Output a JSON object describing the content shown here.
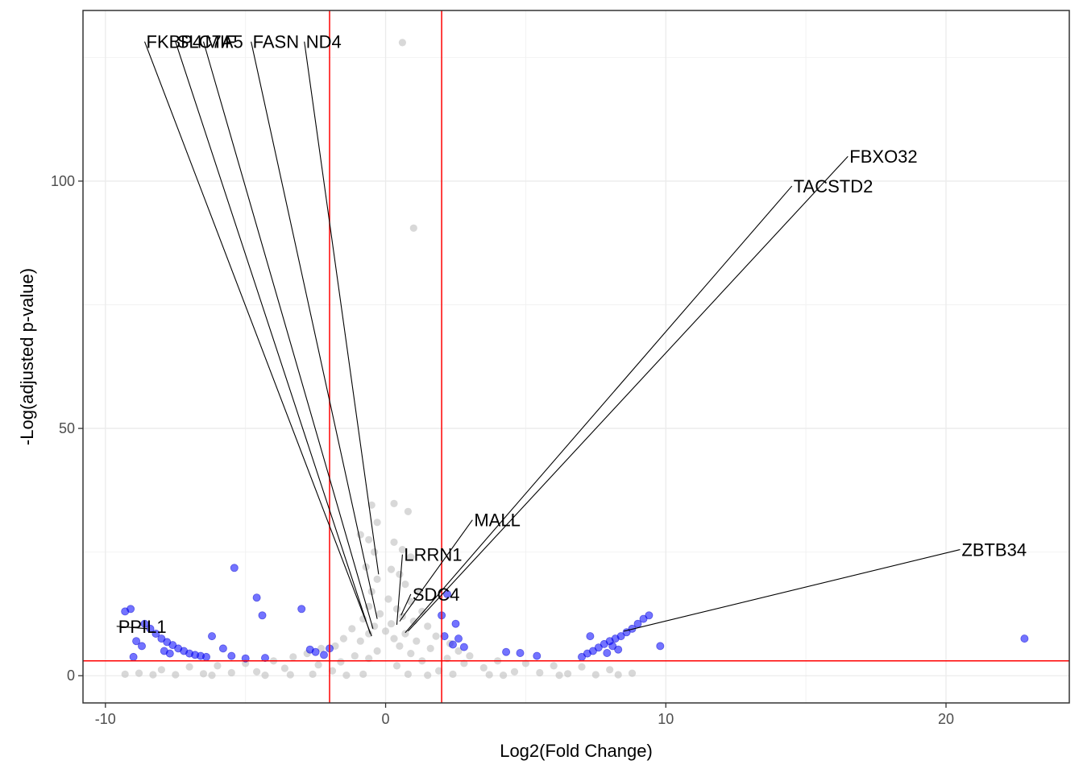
{
  "chart_data": {
    "type": "scatter",
    "title": "",
    "xlabel": "Log2(Fold Change)",
    "ylabel": "-Log(adjusted p-value)",
    "xlim": [
      -10.8,
      24.4
    ],
    "ylim": [
      -5.5,
      134.5
    ],
    "x_ticks": [
      -10,
      0,
      10,
      20
    ],
    "x_tick_labels": [
      "-10",
      "0",
      "10",
      "20"
    ],
    "y_ticks": [
      0,
      50,
      100
    ],
    "y_tick_labels": [
      "0",
      "50",
      "100"
    ],
    "grid": true,
    "legend": "none",
    "thresholds": {
      "log2fc": [
        -2,
        2
      ],
      "neg_log_p": 3,
      "color": "#ff0000"
    },
    "colors": {
      "significant": "#0000ff",
      "not_significant": "#bebebe"
    },
    "series": [
      {
        "group": "not_significant",
        "points": [
          [
            0.6,
            128.0
          ],
          [
            1.0,
            90.5
          ],
          [
            -0.5,
            34.5
          ],
          [
            0.3,
            34.8
          ],
          [
            0.8,
            33.2
          ],
          [
            -0.3,
            31.0
          ],
          [
            -0.9,
            28.5
          ],
          [
            -0.6,
            27.5
          ],
          [
            0.3,
            27.0
          ],
          [
            0.6,
            25.5
          ],
          [
            -0.4,
            25.0
          ],
          [
            0.9,
            24.0
          ],
          [
            -0.7,
            22.0
          ],
          [
            0.2,
            21.5
          ],
          [
            0.5,
            20.5
          ],
          [
            -0.3,
            19.5
          ],
          [
            0.7,
            18.5
          ],
          [
            1.2,
            17.0
          ],
          [
            -0.5,
            17.0
          ],
          [
            0.1,
            15.5
          ],
          [
            0.9,
            15.0
          ],
          [
            -0.6,
            14.0
          ],
          [
            0.4,
            13.5
          ],
          [
            1.3,
            13.0
          ],
          [
            -0.2,
            12.5
          ],
          [
            0.6,
            12.0
          ],
          [
            -0.8,
            11.5
          ],
          [
            1.0,
            11.0
          ],
          [
            0.2,
            10.5
          ],
          [
            -0.4,
            10.0
          ],
          [
            1.5,
            10.0
          ],
          [
            -1.2,
            9.5
          ],
          [
            0.0,
            9.0
          ],
          [
            0.7,
            8.5
          ],
          [
            -0.6,
            8.5
          ],
          [
            1.8,
            8.0
          ],
          [
            -1.5,
            7.5
          ],
          [
            0.3,
            7.5
          ],
          [
            1.1,
            7.0
          ],
          [
            -0.9,
            7.0
          ],
          [
            2.3,
            6.5
          ],
          [
            -1.8,
            6.0
          ],
          [
            0.5,
            6.0
          ],
          [
            -2.3,
            5.5
          ],
          [
            1.6,
            5.5
          ],
          [
            -0.3,
            5.0
          ],
          [
            2.6,
            5.0
          ],
          [
            -2.8,
            4.5
          ],
          [
            0.9,
            4.5
          ],
          [
            -1.1,
            4.0
          ],
          [
            3.0,
            4.0
          ],
          [
            -3.3,
            3.8
          ],
          [
            2.2,
            3.5
          ],
          [
            -0.6,
            3.5
          ],
          [
            4.0,
            3.0
          ],
          [
            -4.0,
            3.0
          ],
          [
            1.3,
            3.0
          ],
          [
            -1.6,
            2.8
          ],
          [
            5.0,
            2.5
          ],
          [
            -5.0,
            2.5
          ],
          [
            2.8,
            2.5
          ],
          [
            -2.4,
            2.2
          ],
          [
            6.0,
            2.0
          ],
          [
            -6.0,
            2.0
          ],
          [
            0.4,
            2.0
          ],
          [
            7.0,
            1.8
          ],
          [
            -7.0,
            1.8
          ],
          [
            3.5,
            1.6
          ],
          [
            -3.6,
            1.5
          ],
          [
            8.0,
            1.2
          ],
          [
            -8.0,
            1.2
          ],
          [
            1.9,
            1.0
          ],
          [
            -1.9,
            1.0
          ],
          [
            4.6,
            0.8
          ],
          [
            -4.6,
            0.8
          ],
          [
            8.8,
            0.5
          ],
          [
            -8.8,
            0.5
          ],
          [
            5.5,
            0.6
          ],
          [
            -5.5,
            0.6
          ],
          [
            6.5,
            0.4
          ],
          [
            -6.5,
            0.4
          ],
          [
            0.8,
            0.3
          ],
          [
            -0.8,
            0.3
          ],
          [
            2.4,
            0.3
          ],
          [
            -2.6,
            0.3
          ],
          [
            3.7,
            0.2
          ],
          [
            -3.4,
            0.2
          ],
          [
            7.5,
            0.2
          ],
          [
            -7.5,
            0.2
          ],
          [
            -9.3,
            0.3
          ],
          [
            -8.3,
            0.2
          ],
          [
            8.3,
            0.2
          ],
          [
            1.5,
            0.1
          ],
          [
            -1.4,
            0.1
          ],
          [
            4.2,
            0.1
          ],
          [
            -4.3,
            0.1
          ],
          [
            6.2,
            0.1
          ],
          [
            -6.2,
            0.1
          ]
        ]
      },
      {
        "group": "significant",
        "points": [
          [
            -9.3,
            13.0
          ],
          [
            -9.1,
            13.5
          ],
          [
            -8.6,
            10.5
          ],
          [
            -8.4,
            9.5
          ],
          [
            -8.2,
            8.5
          ],
          [
            -8.0,
            7.5
          ],
          [
            -7.8,
            6.8
          ],
          [
            -7.6,
            6.2
          ],
          [
            -7.4,
            5.5
          ],
          [
            -7.2,
            5.0
          ],
          [
            -7.0,
            4.5
          ],
          [
            -6.8,
            4.2
          ],
          [
            -6.6,
            4.0
          ],
          [
            -6.4,
            3.8
          ],
          [
            -8.9,
            7.0
          ],
          [
            -8.7,
            6.0
          ],
          [
            -7.9,
            5.0
          ],
          [
            -7.7,
            4.5
          ],
          [
            -9.0,
            3.8
          ],
          [
            -6.2,
            8.0
          ],
          [
            -5.8,
            5.5
          ],
          [
            -5.5,
            4.0
          ],
          [
            -5.0,
            3.5
          ],
          [
            -4.3,
            3.6
          ],
          [
            -3.0,
            13.5
          ],
          [
            -5.4,
            21.8
          ],
          [
            -4.6,
            15.8
          ],
          [
            -4.4,
            12.2
          ],
          [
            -2.7,
            5.3
          ],
          [
            -2.5,
            4.8
          ],
          [
            -2.2,
            4.2
          ],
          [
            -2.0,
            5.5
          ],
          [
            2.0,
            12.2
          ],
          [
            2.1,
            8.0
          ],
          [
            2.2,
            16.5
          ],
          [
            2.4,
            6.3
          ],
          [
            2.5,
            10.5
          ],
          [
            2.6,
            7.5
          ],
          [
            2.8,
            5.8
          ],
          [
            4.3,
            4.8
          ],
          [
            4.8,
            4.6
          ],
          [
            5.4,
            4.0
          ],
          [
            7.0,
            3.8
          ],
          [
            7.2,
            4.5
          ],
          [
            7.4,
            5.0
          ],
          [
            7.6,
            5.7
          ],
          [
            7.8,
            6.4
          ],
          [
            8.0,
            7.0
          ],
          [
            8.2,
            7.5
          ],
          [
            8.4,
            8.0
          ],
          [
            8.6,
            8.8
          ],
          [
            8.8,
            9.5
          ],
          [
            9.0,
            10.5
          ],
          [
            9.2,
            11.5
          ],
          [
            9.4,
            12.2
          ],
          [
            7.3,
            8.0
          ],
          [
            8.1,
            6.0
          ],
          [
            8.3,
            5.3
          ],
          [
            7.9,
            4.6
          ],
          [
            9.8,
            6.0
          ],
          [
            22.8,
            7.5
          ]
        ]
      }
    ],
    "annotations": [
      {
        "text": "FKBP4",
        "point": [
          -0.5,
          8.0
        ],
        "label_at": [
          -8.6,
          128.2
        ]
      },
      {
        "text": "SLC7A5",
        "point": [
          -0.55,
          8.5
        ],
        "label_at": [
          -7.5,
          128.2
        ]
      },
      {
        "text": "MIF",
        "point": [
          -0.45,
          9.5
        ],
        "label_at": [
          -6.5,
          128.2
        ]
      },
      {
        "text": "FASN",
        "point": [
          -0.3,
          11.5
        ],
        "label_at": [
          -4.8,
          128.2
        ]
      },
      {
        "text": "ND4",
        "point": [
          -0.25,
          20.5
        ],
        "label_at": [
          -2.9,
          128.2
        ]
      },
      {
        "text": "FBXO32",
        "point": [
          0.8,
          9.0
        ],
        "label_at": [
          16.5,
          105.0
        ]
      },
      {
        "text": "TACSTD2",
        "point": [
          0.7,
          8.7
        ],
        "label_at": [
          14.5,
          99.0
        ]
      },
      {
        "text": "MALL",
        "point": [
          0.5,
          11.0
        ],
        "label_at": [
          3.1,
          31.5
        ]
      },
      {
        "text": "LRRN1",
        "point": [
          0.4,
          10.3
        ],
        "label_at": [
          0.6,
          24.5
        ]
      },
      {
        "text": "SDC4",
        "point": [
          0.55,
          12.2
        ],
        "label_at": [
          0.9,
          16.5
        ]
      },
      {
        "text": "ZBTB34",
        "point": [
          8.5,
          9.0
        ],
        "label_at": [
          20.5,
          25.5
        ]
      },
      {
        "text": "PPIL1",
        "point": [
          -8.5,
          9.5
        ],
        "label_at": [
          -9.6,
          10.0
        ]
      }
    ]
  }
}
